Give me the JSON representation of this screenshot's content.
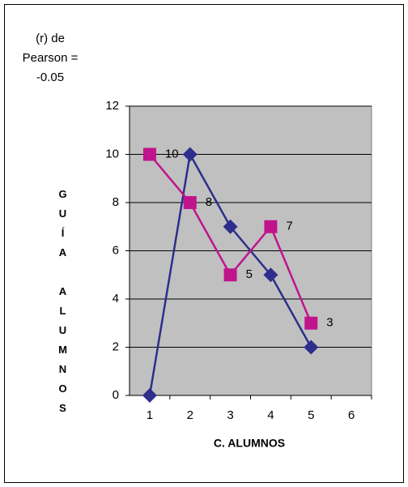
{
  "chart_data": {
    "type": "line",
    "annotation": [
      "(r) de",
      "Pearson =",
      "-0.05"
    ],
    "x_label": "C. ALUMNOS",
    "y_label": "GUÍA ALUMNOS",
    "categories": [
      "1",
      "2",
      "3",
      "4",
      "5",
      "6"
    ],
    "series": [
      {
        "color": "#2e2e8c",
        "marker": "diamond",
        "values": [
          0,
          10,
          7,
          5,
          2,
          null
        ]
      },
      {
        "color": "#c0148c",
        "marker": "square",
        "data_labels": true,
        "values": [
          10,
          8,
          5,
          7,
          3,
          null
        ]
      }
    ],
    "ylim": [
      0,
      12
    ],
    "yticks": [
      0,
      2,
      4,
      6,
      8,
      10,
      12
    ],
    "grid": true,
    "plot_background": "#c0c0c0"
  }
}
